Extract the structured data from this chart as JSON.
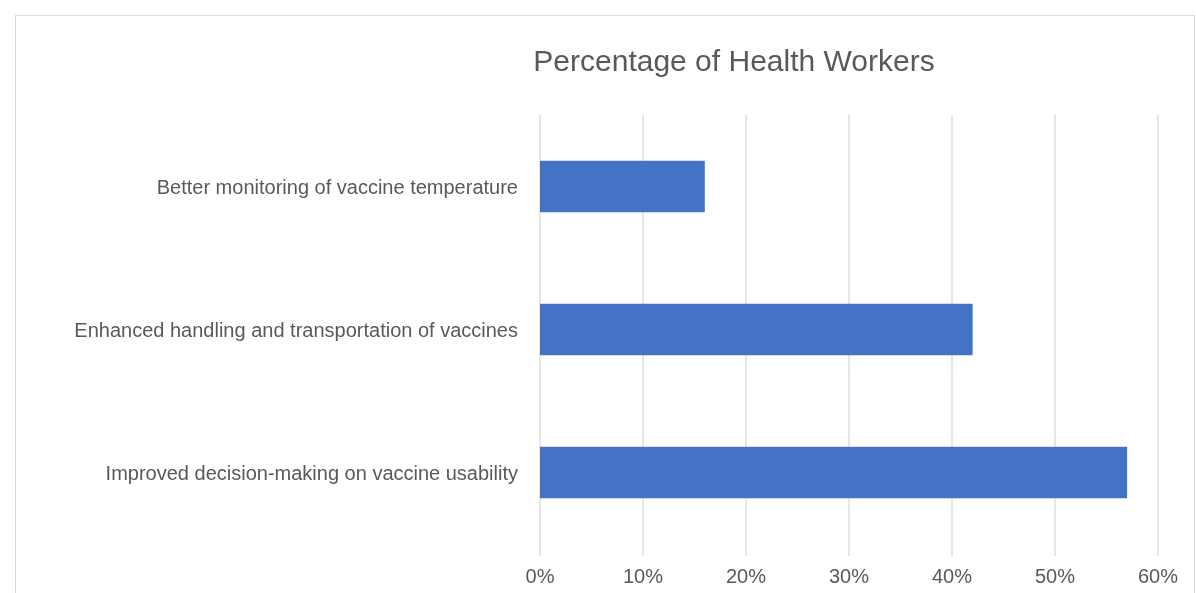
{
  "chart_data": {
    "type": "bar",
    "orientation": "horizontal",
    "title": "Percentage of Health Workers",
    "categories": [
      "Better monitoring of vaccine temperature",
      "Enhanced handling and transportation of vaccines",
      "Improved decision-making on vaccine usability"
    ],
    "values": [
      16,
      42,
      57
    ],
    "color": "#4472c4",
    "xlim": [
      0,
      60
    ],
    "xticks": [
      {
        "value": 0,
        "label": "0%"
      },
      {
        "value": 10,
        "label": "10%"
      },
      {
        "value": 20,
        "label": "20%"
      },
      {
        "value": 30,
        "label": "30%"
      },
      {
        "value": 40,
        "label": "40%"
      },
      {
        "value": 50,
        "label": "50%"
      },
      {
        "value": 60,
        "label": "60%"
      }
    ],
    "grid": "x"
  }
}
